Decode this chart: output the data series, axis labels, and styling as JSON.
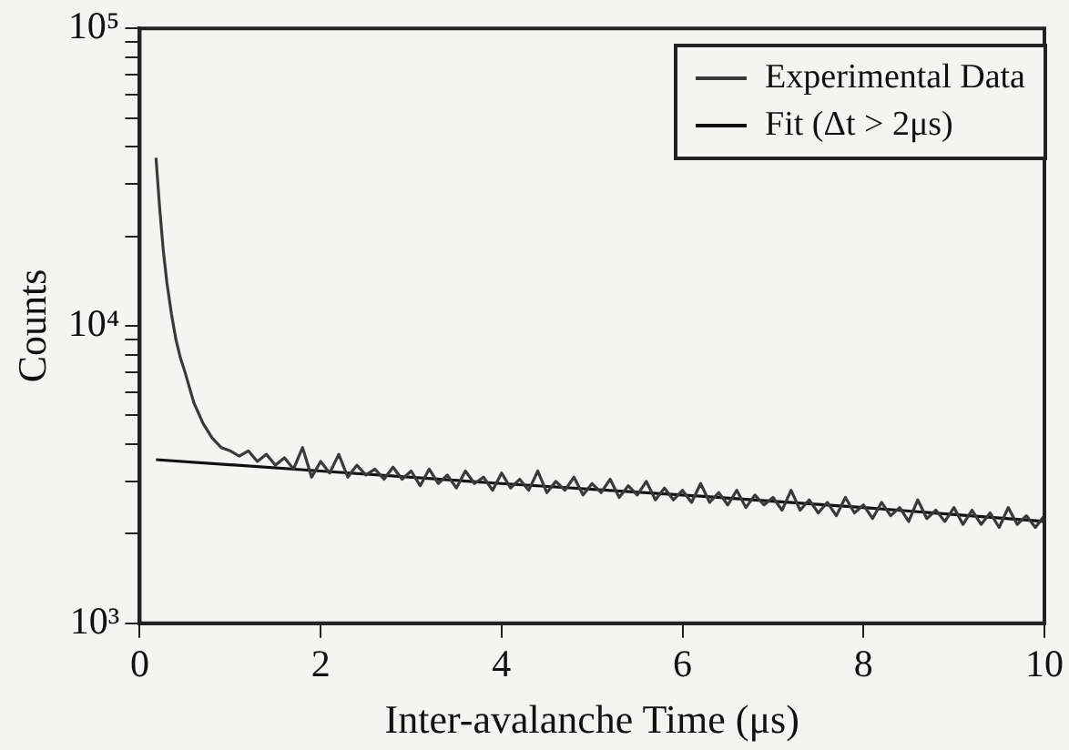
{
  "chart_data": {
    "type": "line",
    "xlabel": "Inter-avalanche Time (μs)",
    "ylabel": "Counts",
    "log": "y",
    "xlim": [
      0,
      10
    ],
    "xticks": [
      0,
      2,
      4,
      6,
      8,
      10
    ],
    "ylim": [
      1000,
      100000
    ],
    "yticks": [
      {
        "value": 1000,
        "label": "10³"
      },
      {
        "value": 2000,
        "label": null
      },
      {
        "value": 3000,
        "label": null
      },
      {
        "value": 4000,
        "label": null
      },
      {
        "value": 5000,
        "label": null
      },
      {
        "value": 6000,
        "label": null
      },
      {
        "value": 7000,
        "label": null
      },
      {
        "value": 8000,
        "label": null
      },
      {
        "value": 9000,
        "label": null
      },
      {
        "value": 10000,
        "label": "10⁴"
      },
      {
        "value": 20000,
        "label": null
      },
      {
        "value": 30000,
        "label": null
      },
      {
        "value": 40000,
        "label": null
      },
      {
        "value": 50000,
        "label": null
      },
      {
        "value": 60000,
        "label": null
      },
      {
        "value": 70000,
        "label": null
      },
      {
        "value": 80000,
        "label": null
      },
      {
        "value": 90000,
        "label": null
      },
      {
        "value": 100000,
        "label": "10⁵"
      }
    ],
    "grid": false,
    "legend": "top right",
    "marker": "none",
    "line_style": "solid",
    "series": [
      {
        "name": "Experimental Data",
        "color": "#3a3a3a",
        "x": [
          0.18,
          0.22,
          0.26,
          0.3,
          0.35,
          0.4,
          0.45,
          0.5,
          0.55,
          0.6,
          0.7,
          0.8,
          0.9,
          1.0,
          1.1,
          1.2,
          1.3,
          1.4,
          1.5,
          1.6,
          1.7,
          1.8,
          1.9,
          2.0,
          2.1,
          2.2,
          2.3,
          2.4,
          2.5,
          2.6,
          2.7,
          2.8,
          2.9,
          3.0,
          3.1,
          3.2,
          3.3,
          3.4,
          3.5,
          3.6,
          3.7,
          3.8,
          3.9,
          4.0,
          4.1,
          4.2,
          4.3,
          4.4,
          4.5,
          4.6,
          4.7,
          4.8,
          4.9,
          5.0,
          5.1,
          5.2,
          5.3,
          5.4,
          5.5,
          5.6,
          5.7,
          5.8,
          5.9,
          6.0,
          6.1,
          6.2,
          6.3,
          6.4,
          6.5,
          6.6,
          6.7,
          6.8,
          6.9,
          7.0,
          7.1,
          7.2,
          7.3,
          7.4,
          7.5,
          7.6,
          7.7,
          7.8,
          7.9,
          8.0,
          8.1,
          8.2,
          8.3,
          8.4,
          8.5,
          8.6,
          8.7,
          8.8,
          8.9,
          9.0,
          9.1,
          9.2,
          9.3,
          9.4,
          9.5,
          9.6,
          9.7,
          9.8,
          9.9,
          10.0
        ],
        "values": [
          36700,
          25000,
          18000,
          14000,
          11000,
          9000,
          7800,
          7000,
          6200,
          5500,
          4700,
          4200,
          3900,
          3800,
          3650,
          3800,
          3500,
          3700,
          3400,
          3600,
          3300,
          3900,
          3100,
          3500,
          3200,
          3700,
          3100,
          3400,
          3150,
          3300,
          3050,
          3350,
          3050,
          3250,
          2900,
          3300,
          2950,
          3150,
          2850,
          3250,
          2950,
          3100,
          2800,
          3200,
          2850,
          3050,
          2800,
          3250,
          2750,
          3000,
          2800,
          3100,
          2700,
          2950,
          2750,
          3050,
          2650,
          2900,
          2700,
          3000,
          2600,
          2850,
          2600,
          2800,
          2550,
          2950,
          2550,
          2750,
          2500,
          2800,
          2450,
          2700,
          2500,
          2650,
          2400,
          2800,
          2400,
          2600,
          2350,
          2550,
          2300,
          2650,
          2350,
          2500,
          2250,
          2550,
          2300,
          2450,
          2200,
          2600,
          2250,
          2400,
          2200,
          2450,
          2150,
          2400,
          2150,
          2350,
          2100,
          2450,
          2150,
          2300,
          2100,
          2300
        ]
      },
      {
        "name": "Fit (Δt > 2μs)",
        "color": "#111111",
        "x": [
          0.18,
          2,
          4,
          6,
          8,
          10
        ],
        "values": [
          3550,
          3250,
          2950,
          2700,
          2450,
          2200
        ]
      }
    ]
  }
}
